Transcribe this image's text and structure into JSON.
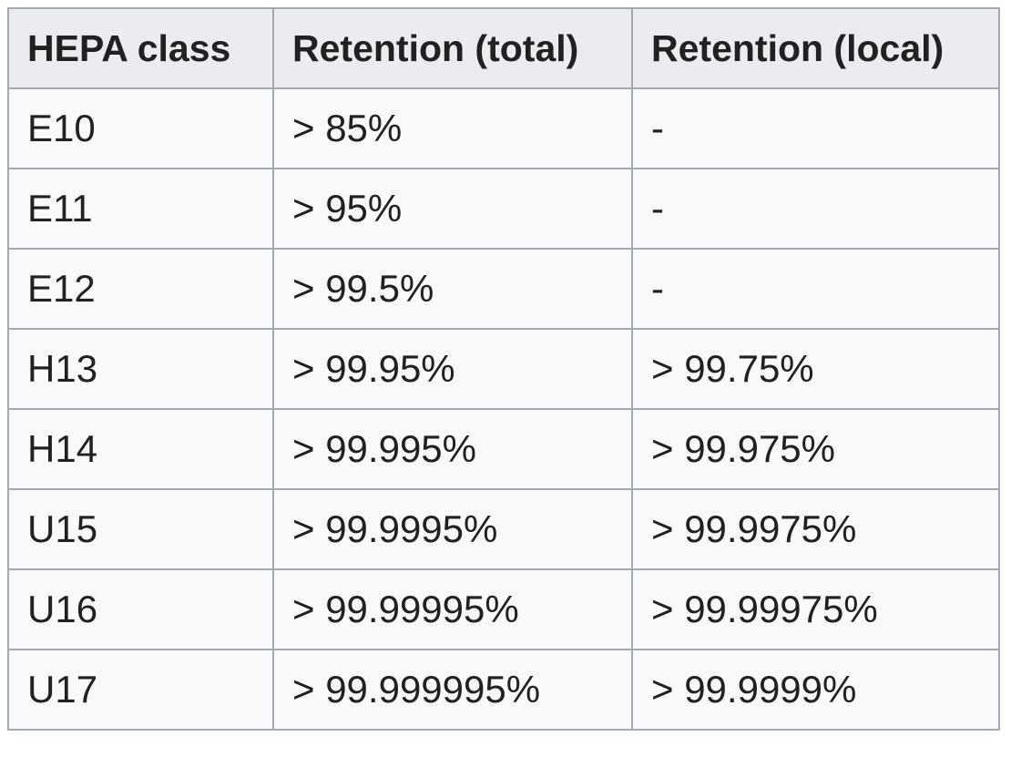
{
  "table": {
    "headers": [
      "HEPA class",
      "Retention (total)",
      "Retention (local)"
    ],
    "rows": [
      [
        "E10",
        "> 85%",
        "-"
      ],
      [
        "E11",
        "> 95%",
        "-"
      ],
      [
        "E12",
        "> 99.5%",
        "-"
      ],
      [
        "H13",
        "> 99.95%",
        "> 99.75%"
      ],
      [
        "H14",
        "> 99.995%",
        "> 99.975%"
      ],
      [
        "U15",
        "> 99.9995%",
        "> 99.9975%"
      ],
      [
        "U16",
        "> 99.99995%",
        "> 99.99975%"
      ],
      [
        "U17",
        "> 99.999995%",
        "> 99.9999%"
      ]
    ]
  }
}
